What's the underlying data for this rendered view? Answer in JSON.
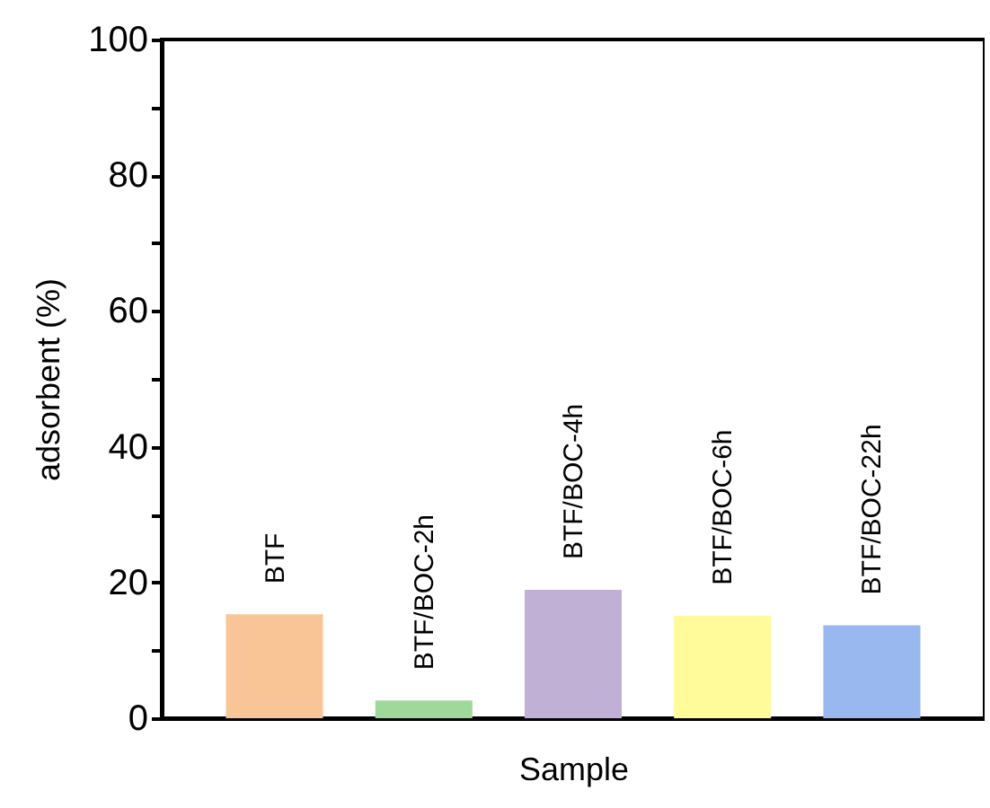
{
  "chart_data": {
    "type": "bar",
    "xlabel": "Sample",
    "ylabel": "adsorbent  (%)",
    "categories": [
      "BTF",
      "BTF/BOC-2h",
      "BTF/BOC-4h",
      "BTF/BOC-6h",
      "BTF/BOC-22h"
    ],
    "values": [
      15.3,
      2.6,
      18.9,
      15.1,
      13.7
    ],
    "colors": [
      "#f9c596",
      "#9fd99a",
      "#c0b0d6",
      "#fffb9a",
      "#99b8ef"
    ],
    "ylim": [
      0,
      100
    ],
    "yticks": [
      0,
      {
        "value": 10,
        "label": null
      },
      20,
      {
        "value": 30,
        "label": null
      },
      40,
      {
        "value": 50,
        "label": null
      },
      60,
      {
        "value": 70,
        "label": null
      },
      80,
      {
        "value": 90,
        "label": null
      },
      100
    ],
    "tick_labels": "y",
    "grid": false,
    "legend": false
  }
}
